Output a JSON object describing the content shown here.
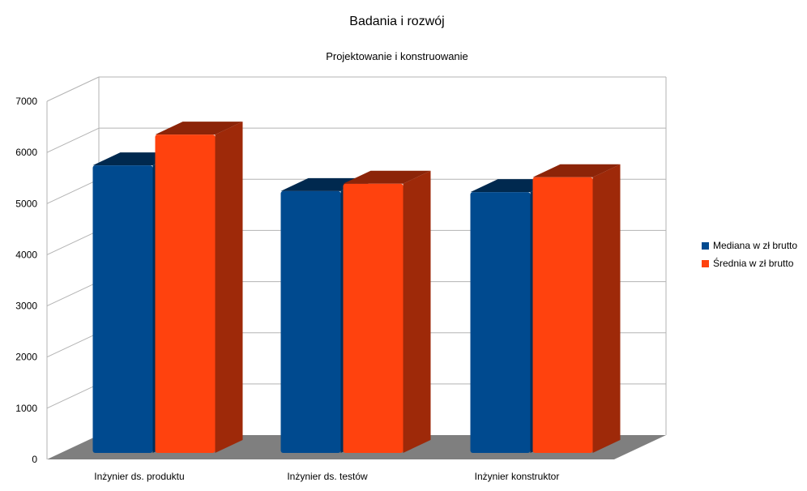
{
  "title": "Badania i rozwój",
  "subtitle": "Projektowanie i konstruowanie",
  "colors": {
    "series1": "#004a8f",
    "series2": "#ff420e",
    "floor": "#7f7f7f",
    "grid": "#b3b3b3"
  },
  "chart_data": {
    "type": "bar",
    "title": "Badania i rozwój",
    "subtitle": "Projektowanie i konstruowanie",
    "categories": [
      "Inżynier ds. produktu",
      "Inżynier ds. testów",
      "Inżynier konstruktor"
    ],
    "series": [
      {
        "name": "Mediana w zł brutto",
        "values": [
          5800,
          5280,
          5260
        ]
      },
      {
        "name": "Średnia w zł brutto",
        "values": [
          6420,
          5430,
          5560
        ]
      }
    ],
    "ylim": [
      0,
      7000
    ],
    "yticks": [
      0,
      1000,
      2000,
      3000,
      4000,
      5000,
      6000,
      7000
    ],
    "grid": true,
    "legend": "right",
    "three_d": true
  }
}
